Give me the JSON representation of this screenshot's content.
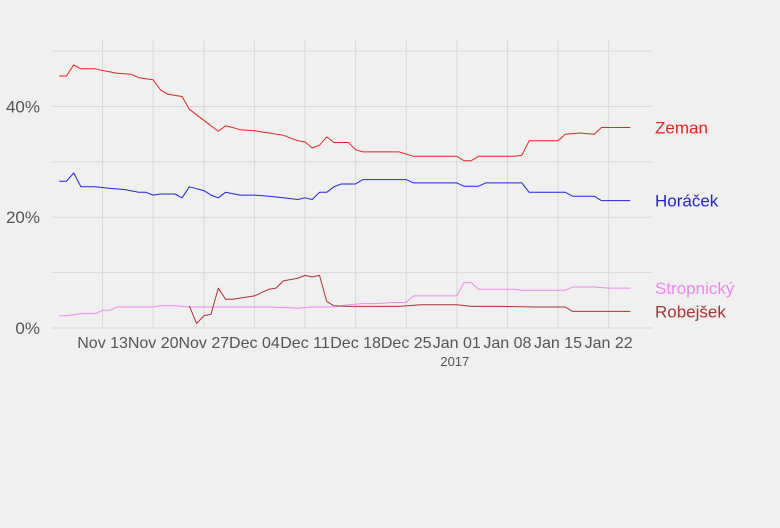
{
  "chart_data": {
    "type": "line",
    "title": "",
    "xlabel": "2017",
    "ylabel": "",
    "x_unit": "date",
    "xlim": [
      "2017-11-06",
      "2018-01-28"
    ],
    "ylim": [
      0,
      52
    ],
    "y_tick_values": [
      0,
      20,
      40
    ],
    "y_tick_labels": [
      "0%",
      "20%",
      "40%"
    ],
    "x_tick_values": [
      "2017-11-13",
      "2017-11-20",
      "2017-11-27",
      "2017-12-04",
      "2017-12-11",
      "2017-12-18",
      "2017-12-25",
      "2018-01-01",
      "2018-01-08",
      "2018-01-15",
      "2018-01-22"
    ],
    "x_tick_labels": [
      "Nov 13",
      "Nov 20",
      "Nov 27",
      "Dec 04",
      "Dec 11",
      "Dec 18",
      "Dec 25",
      "Jan 01",
      "Jan 08",
      "Jan 15",
      "Jan 22"
    ],
    "grid": true,
    "legend": "direct labels at right end of lines",
    "series": [
      {
        "name": "Zeman",
        "color": "#ee2222",
        "points": [
          [
            "2017-11-07",
            45.5
          ],
          [
            "2017-11-08",
            45.5
          ],
          [
            "2017-11-09",
            47.5
          ],
          [
            "2017-11-10",
            46.8
          ],
          [
            "2017-11-12",
            46.8
          ],
          [
            "2017-11-13",
            46.5
          ],
          [
            "2017-11-15",
            46.0
          ],
          [
            "2017-11-17",
            45.8
          ],
          [
            "2017-11-18",
            45.2
          ],
          [
            "2017-11-20",
            44.8
          ],
          [
            "2017-11-21",
            43.0
          ],
          [
            "2017-11-22",
            42.2
          ],
          [
            "2017-11-24",
            41.8
          ],
          [
            "2017-11-25",
            39.5
          ],
          [
            "2017-11-27",
            37.5
          ],
          [
            "2017-11-28",
            36.5
          ],
          [
            "2017-11-29",
            35.5
          ],
          [
            "2017-11-30",
            36.5
          ],
          [
            "2017-12-01",
            36.2
          ],
          [
            "2017-12-02",
            35.8
          ],
          [
            "2017-12-04",
            35.6
          ],
          [
            "2017-12-06",
            35.2
          ],
          [
            "2017-12-08",
            34.8
          ],
          [
            "2017-12-10",
            33.8
          ],
          [
            "2017-12-11",
            33.6
          ],
          [
            "2017-12-12",
            32.5
          ],
          [
            "2017-12-13",
            33.0
          ],
          [
            "2017-12-14",
            34.5
          ],
          [
            "2017-12-15",
            33.5
          ],
          [
            "2017-12-17",
            33.5
          ],
          [
            "2017-12-18",
            32.2
          ],
          [
            "2017-12-19",
            31.8
          ],
          [
            "2017-12-22",
            31.8
          ],
          [
            "2017-12-24",
            31.8
          ],
          [
            "2017-12-26",
            31.0
          ],
          [
            "2017-12-28",
            31.0
          ],
          [
            "2018-01-01",
            31.0
          ],
          [
            "2018-01-02",
            30.2
          ],
          [
            "2018-01-03",
            30.2
          ],
          [
            "2018-01-04",
            31.0
          ],
          [
            "2018-01-06",
            31.0
          ],
          [
            "2018-01-09",
            31.0
          ],
          [
            "2018-01-10",
            31.2
          ],
          [
            "2018-01-11",
            33.8
          ],
          [
            "2018-01-13",
            33.8
          ],
          [
            "2018-01-15",
            33.8
          ],
          [
            "2018-01-16",
            35.0
          ],
          [
            "2018-01-18",
            35.2
          ],
          [
            "2018-01-20",
            35.0
          ],
          [
            "2018-01-21",
            36.2
          ],
          [
            "2018-01-25",
            36.2
          ]
        ]
      },
      {
        "name": "Horáček",
        "color": "#2222dd",
        "points": [
          [
            "2017-11-07",
            26.5
          ],
          [
            "2017-11-08",
            26.5
          ],
          [
            "2017-11-09",
            28.0
          ],
          [
            "2017-11-10",
            25.5
          ],
          [
            "2017-11-12",
            25.5
          ],
          [
            "2017-11-14",
            25.2
          ],
          [
            "2017-11-16",
            25.0
          ],
          [
            "2017-11-18",
            24.5
          ],
          [
            "2017-11-19",
            24.5
          ],
          [
            "2017-11-20",
            24.0
          ],
          [
            "2017-11-21",
            24.2
          ],
          [
            "2017-11-23",
            24.2
          ],
          [
            "2017-11-24",
            23.5
          ],
          [
            "2017-11-25",
            25.5
          ],
          [
            "2017-11-27",
            24.8
          ],
          [
            "2017-11-28",
            24.0
          ],
          [
            "2017-11-29",
            23.5
          ],
          [
            "2017-11-30",
            24.5
          ],
          [
            "2017-12-02",
            24.0
          ],
          [
            "2017-12-04",
            24.0
          ],
          [
            "2017-12-06",
            23.8
          ],
          [
            "2017-12-08",
            23.5
          ],
          [
            "2017-12-10",
            23.2
          ],
          [
            "2017-12-11",
            23.5
          ],
          [
            "2017-12-12",
            23.2
          ],
          [
            "2017-12-13",
            24.5
          ],
          [
            "2017-12-14",
            24.5
          ],
          [
            "2017-12-15",
            25.5
          ],
          [
            "2017-12-16",
            26.0
          ],
          [
            "2017-12-18",
            26.0
          ],
          [
            "2017-12-19",
            26.8
          ],
          [
            "2017-12-22",
            26.8
          ],
          [
            "2017-12-25",
            26.8
          ],
          [
            "2017-12-26",
            26.2
          ],
          [
            "2018-01-01",
            26.2
          ],
          [
            "2018-01-02",
            25.6
          ],
          [
            "2018-01-04",
            25.6
          ],
          [
            "2018-01-05",
            26.2
          ],
          [
            "2018-01-10",
            26.2
          ],
          [
            "2018-01-11",
            24.5
          ],
          [
            "2018-01-13",
            24.5
          ],
          [
            "2018-01-16",
            24.5
          ],
          [
            "2018-01-17",
            23.8
          ],
          [
            "2018-01-20",
            23.8
          ],
          [
            "2018-01-21",
            23.0
          ],
          [
            "2018-01-25",
            23.0
          ]
        ]
      },
      {
        "name": "Stropnický",
        "color": "#ee88ee",
        "points": [
          [
            "2017-11-07",
            2.2
          ],
          [
            "2017-11-08",
            2.2
          ],
          [
            "2017-11-10",
            2.6
          ],
          [
            "2017-11-12",
            2.6
          ],
          [
            "2017-11-13",
            3.2
          ],
          [
            "2017-11-14",
            3.2
          ],
          [
            "2017-11-15",
            3.8
          ],
          [
            "2017-11-17",
            3.8
          ],
          [
            "2017-11-20",
            3.8
          ],
          [
            "2017-11-21",
            4.0
          ],
          [
            "2017-11-23",
            4.0
          ],
          [
            "2017-11-25",
            3.8
          ],
          [
            "2017-11-28",
            3.8
          ],
          [
            "2017-12-02",
            3.8
          ],
          [
            "2017-12-06",
            3.8
          ],
          [
            "2017-12-10",
            3.6
          ],
          [
            "2017-12-12",
            3.8
          ],
          [
            "2017-12-15",
            3.8
          ],
          [
            "2017-12-17",
            4.2
          ],
          [
            "2017-12-19",
            4.4
          ],
          [
            "2017-12-21",
            4.4
          ],
          [
            "2017-12-23",
            4.6
          ],
          [
            "2017-12-25",
            4.6
          ],
          [
            "2017-12-26",
            5.8
          ],
          [
            "2017-12-30",
            5.8
          ],
          [
            "2018-01-01",
            5.8
          ],
          [
            "2018-01-02",
            8.2
          ],
          [
            "2018-01-03",
            8.2
          ],
          [
            "2018-01-04",
            7.0
          ],
          [
            "2018-01-09",
            7.0
          ],
          [
            "2018-01-10",
            6.8
          ],
          [
            "2018-01-16",
            6.8
          ],
          [
            "2018-01-17",
            7.4
          ],
          [
            "2018-01-20",
            7.4
          ],
          [
            "2018-01-22",
            7.2
          ],
          [
            "2018-01-25",
            7.2
          ]
        ]
      },
      {
        "name": "Robejšek",
        "color": "#aa3333",
        "points": [
          [
            "2017-11-25",
            4.0
          ],
          [
            "2017-11-26",
            0.8
          ],
          [
            "2017-11-27",
            2.2
          ],
          [
            "2017-11-28",
            2.5
          ],
          [
            "2017-11-29",
            7.2
          ],
          [
            "2017-11-30",
            5.2
          ],
          [
            "2017-12-01",
            5.2
          ],
          [
            "2017-12-03",
            5.6
          ],
          [
            "2017-12-04",
            5.8
          ],
          [
            "2017-12-06",
            7.0
          ],
          [
            "2017-12-07",
            7.2
          ],
          [
            "2017-12-08",
            8.5
          ],
          [
            "2017-12-10",
            9.0
          ],
          [
            "2017-12-11",
            9.5
          ],
          [
            "2017-12-12",
            9.2
          ],
          [
            "2017-12-13",
            9.5
          ],
          [
            "2017-12-14",
            4.8
          ],
          [
            "2017-12-15",
            4.0
          ],
          [
            "2017-12-17",
            3.9
          ],
          [
            "2017-12-20",
            3.9
          ],
          [
            "2017-12-24",
            3.9
          ],
          [
            "2017-12-27",
            4.2
          ],
          [
            "2018-01-01",
            4.2
          ],
          [
            "2018-01-03",
            3.9
          ],
          [
            "2018-01-07",
            3.9
          ],
          [
            "2018-01-12",
            3.8
          ],
          [
            "2018-01-16",
            3.8
          ],
          [
            "2018-01-17",
            3.0
          ],
          [
            "2018-01-20",
            3.0
          ],
          [
            "2018-01-25",
            3.0
          ]
        ]
      }
    ]
  }
}
